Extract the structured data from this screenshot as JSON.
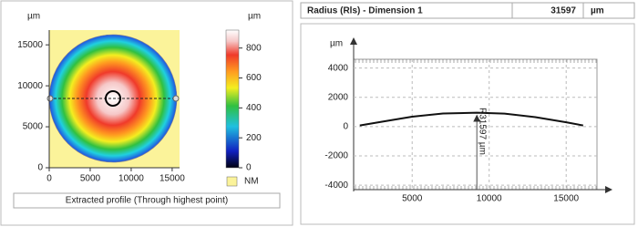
{
  "result": {
    "label": "Radius (Rls) - Dimension  1",
    "value": 31597,
    "unit": "µm"
  },
  "chart_data": [
    {
      "type": "heatmap",
      "y_label": "µm",
      "xlim": [
        0,
        15900
      ],
      "ylim": [
        0,
        16800
      ],
      "xticks": [
        0,
        5000,
        10000,
        15000
      ],
      "yticks": [
        0,
        5000,
        10000,
        15000
      ],
      "colorbar": {
        "label": "µm",
        "lim": [
          0,
          920
        ],
        "ticks": [
          0,
          200,
          400,
          600,
          800
        ]
      },
      "legend": "NM",
      "legend_color": "#fbf39a",
      "caption": "Extracted profile (Through highest point)"
    },
    {
      "type": "line",
      "y_label": "µm",
      "color": "#111111",
      "grid": true,
      "x": [
        1600,
        3000,
        5000,
        7000,
        9200,
        11000,
        13000,
        15000,
        16100
      ],
      "values": [
        80,
        330,
        680,
        900,
        950,
        890,
        650,
        300,
        80
      ],
      "xlim": [
        1200,
        17000
      ],
      "ylim": [
        -4300,
        4600
      ],
      "xticks": [
        5000,
        10000,
        15000
      ],
      "yticks": [
        -4000,
        -2000,
        0,
        2000,
        4000
      ],
      "annotation": "R31597 µm",
      "annotation_x": 9200
    }
  ]
}
